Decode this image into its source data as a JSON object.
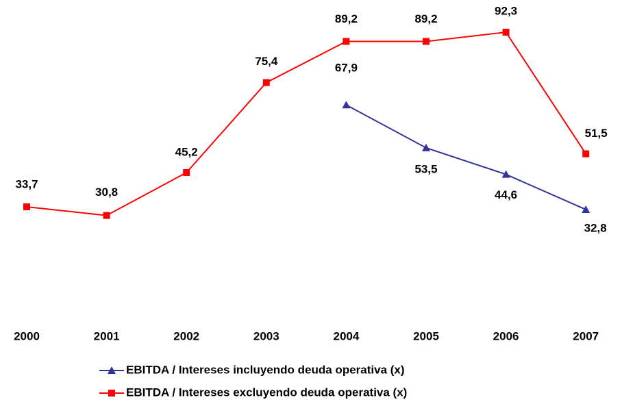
{
  "chart_data": {
    "type": "line",
    "categories": [
      "2000",
      "2001",
      "2002",
      "2003",
      "2004",
      "2005",
      "2006",
      "2007"
    ],
    "series": [
      {
        "name": "EBITDA / Intereses incluyendo deuda operativa (x)",
        "color": "#333399",
        "marker": "triangle",
        "values": [
          null,
          null,
          null,
          null,
          67.9,
          53.5,
          44.6,
          32.8
        ],
        "value_labels": [
          null,
          null,
          null,
          null,
          "67,9",
          "53,5",
          "44,6",
          "32,8"
        ]
      },
      {
        "name": "EBITDA / Intereses excluyendo deuda operativa (x)",
        "color": "#ff0000",
        "marker": "square",
        "values": [
          33.7,
          30.8,
          45.2,
          75.4,
          89.2,
          89.2,
          92.3,
          51.5
        ],
        "value_labels": [
          "33,7",
          "30,8",
          "45,2",
          "75,4",
          "89,2",
          "89,2",
          "92,3",
          "51,5"
        ]
      }
    ],
    "ylim": [
      0,
      100
    ],
    "legend": "bottom"
  }
}
